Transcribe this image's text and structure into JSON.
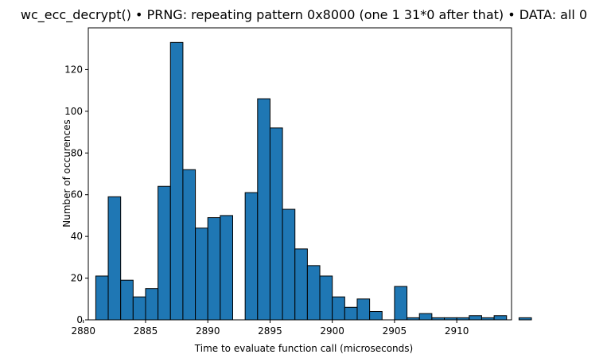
{
  "chart_data": {
    "type": "bar",
    "title": "wc_ecc_decrypt() • PRNG: repeating pattern 0x8000 (one 1 31*0 after that) • DATA: all 0",
    "xlabel": "Time to evaluate function call (microseconds)",
    "ylabel": "Number of occurences",
    "xlim": [
      2880.4,
      2914.4
    ],
    "ylim": [
      0,
      140
    ],
    "xticks": [
      2880,
      2885,
      2890,
      2895,
      2900,
      2905,
      2910
    ],
    "yticks": [
      0,
      20,
      40,
      60,
      80,
      100,
      120
    ],
    "grid": false,
    "bar_color": "#1f77b4",
    "edge_color": "#000000",
    "bins": [
      {
        "x0": 2881.0,
        "x1": 2882.0,
        "count": 21
      },
      {
        "x0": 2882.0,
        "x1": 2883.0,
        "count": 59
      },
      {
        "x0": 2883.0,
        "x1": 2884.0,
        "count": 19
      },
      {
        "x0": 2884.0,
        "x1": 2885.0,
        "count": 11
      },
      {
        "x0": 2885.0,
        "x1": 2886.0,
        "count": 15
      },
      {
        "x0": 2886.0,
        "x1": 2887.0,
        "count": 64
      },
      {
        "x0": 2887.0,
        "x1": 2888.0,
        "count": 133
      },
      {
        "x0": 2888.0,
        "x1": 2889.0,
        "count": 72
      },
      {
        "x0": 2889.0,
        "x1": 2890.0,
        "count": 44
      },
      {
        "x0": 2890.0,
        "x1": 2891.0,
        "count": 49
      },
      {
        "x0": 2891.0,
        "x1": 2892.0,
        "count": 50
      },
      {
        "x0": 2892.0,
        "x1": 2893.0,
        "count": 0
      },
      {
        "x0": 2893.0,
        "x1": 2894.0,
        "count": 61
      },
      {
        "x0": 2894.0,
        "x1": 2895.0,
        "count": 106
      },
      {
        "x0": 2895.0,
        "x1": 2896.0,
        "count": 92
      },
      {
        "x0": 2896.0,
        "x1": 2897.0,
        "count": 53
      },
      {
        "x0": 2897.0,
        "x1": 2898.0,
        "count": 34
      },
      {
        "x0": 2898.0,
        "x1": 2899.0,
        "count": 26
      },
      {
        "x0": 2899.0,
        "x1": 2900.0,
        "count": 21
      },
      {
        "x0": 2900.0,
        "x1": 2901.0,
        "count": 11
      },
      {
        "x0": 2901.0,
        "x1": 2902.0,
        "count": 6
      },
      {
        "x0": 2902.0,
        "x1": 2903.0,
        "count": 10
      },
      {
        "x0": 2903.0,
        "x1": 2904.0,
        "count": 4
      },
      {
        "x0": 2904.0,
        "x1": 2905.0,
        "count": 0
      },
      {
        "x0": 2905.0,
        "x1": 2906.0,
        "count": 16
      },
      {
        "x0": 2906.0,
        "x1": 2907.0,
        "count": 1
      },
      {
        "x0": 2907.0,
        "x1": 2908.0,
        "count": 3
      },
      {
        "x0": 2908.0,
        "x1": 2909.0,
        "count": 1
      },
      {
        "x0": 2909.0,
        "x1": 2910.0,
        "count": 1
      },
      {
        "x0": 2910.0,
        "x1": 2911.0,
        "count": 1
      },
      {
        "x0": 2911.0,
        "x1": 2912.0,
        "count": 2
      },
      {
        "x0": 2912.0,
        "x1": 2913.0,
        "count": 1
      },
      {
        "x0": 2913.0,
        "x1": 2914.0,
        "count": 2
      },
      {
        "x0": 2914.0,
        "x1": 2915.0,
        "count": 0
      },
      {
        "x0": 2915.0,
        "x1": 2916.0,
        "count": 1
      }
    ]
  }
}
